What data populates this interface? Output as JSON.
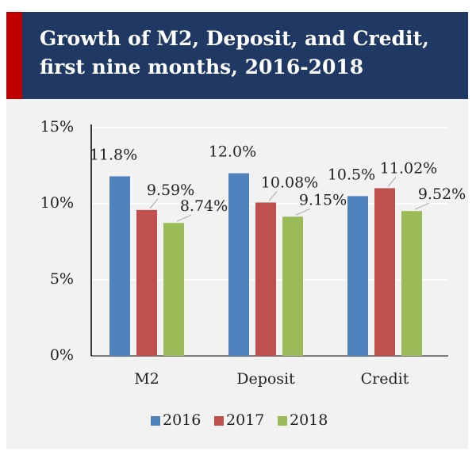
{
  "chart_data": {
    "type": "bar",
    "title": "Growth of M2, Deposit, and Credit, first nine months, 2016-2018",
    "categories": [
      "M2",
      "Deposit",
      "Credit"
    ],
    "series": [
      {
        "name": "2016",
        "color": "#4f81bd",
        "values": [
          11.8,
          12.0,
          10.5
        ],
        "value_labels": [
          "11.8%",
          "12.0%",
          "10.5%"
        ]
      },
      {
        "name": "2017",
        "color": "#c0504d",
        "values": [
          9.59,
          10.08,
          11.02
        ],
        "value_labels": [
          "9.59%",
          "10.08%",
          "11.02%"
        ]
      },
      {
        "name": "2018",
        "color": "#9bbb59",
        "values": [
          8.74,
          9.15,
          9.52
        ],
        "value_labels": [
          "8.74%",
          "9.15%",
          "9.52%"
        ]
      }
    ],
    "ylim": [
      0,
      15
    ],
    "yticks": [
      {
        "value": 0,
        "label": "0%"
      },
      {
        "value": 5,
        "label": "5%"
      },
      {
        "value": 10,
        "label": "10%"
      },
      {
        "value": 15,
        "label": "15%"
      }
    ],
    "grid": true,
    "legend": "bottom"
  }
}
